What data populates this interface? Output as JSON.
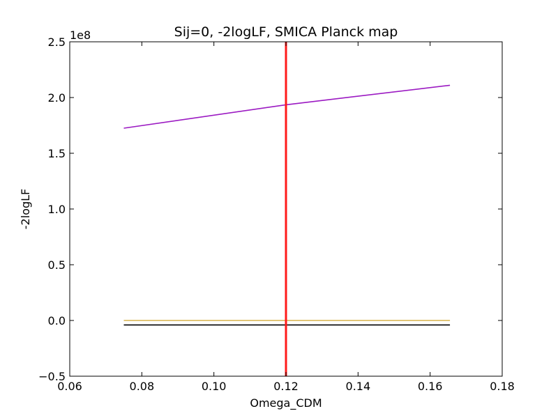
{
  "chart_data": {
    "type": "line",
    "title": "Sij=0, -2logLF, SMICA Planck map",
    "xlabel": "Omega_CDM",
    "ylabel": "-2logLF",
    "y_offset_label": "1e8",
    "y_scale": 100000000,
    "xlim": [
      0.06,
      0.18
    ],
    "ylim": [
      -0.5,
      2.5
    ],
    "x_ticks": [
      0.06,
      0.08,
      0.1,
      0.12,
      0.14,
      0.16,
      0.18
    ],
    "x_tick_labels": [
      "0.06",
      "0.08",
      "0.10",
      "0.12",
      "0.14",
      "0.16",
      "0.18"
    ],
    "y_ticks": [
      -0.5,
      0.0,
      0.5,
      1.0,
      1.5,
      2.0,
      2.5
    ],
    "y_tick_labels": [
      "−0.5",
      "0.0",
      "0.5",
      "1.0",
      "1.5",
      "2.0",
      "2.5"
    ],
    "series": [
      {
        "name": "purple",
        "color": "#9b19c2",
        "x": [
          0.075,
          0.12,
          0.1655
        ],
        "y": [
          1.725,
          1.935,
          2.11
        ]
      },
      {
        "name": "gold",
        "color": "#d9b34a",
        "x": [
          0.075,
          0.1655
        ],
        "y": [
          0.0,
          0.0
        ]
      },
      {
        "name": "black",
        "color": "#000000",
        "x": [
          0.075,
          0.1655
        ],
        "y": [
          -0.04,
          -0.04
        ]
      }
    ],
    "vline": {
      "x": 0.12,
      "color": "#ff1a1a"
    }
  }
}
